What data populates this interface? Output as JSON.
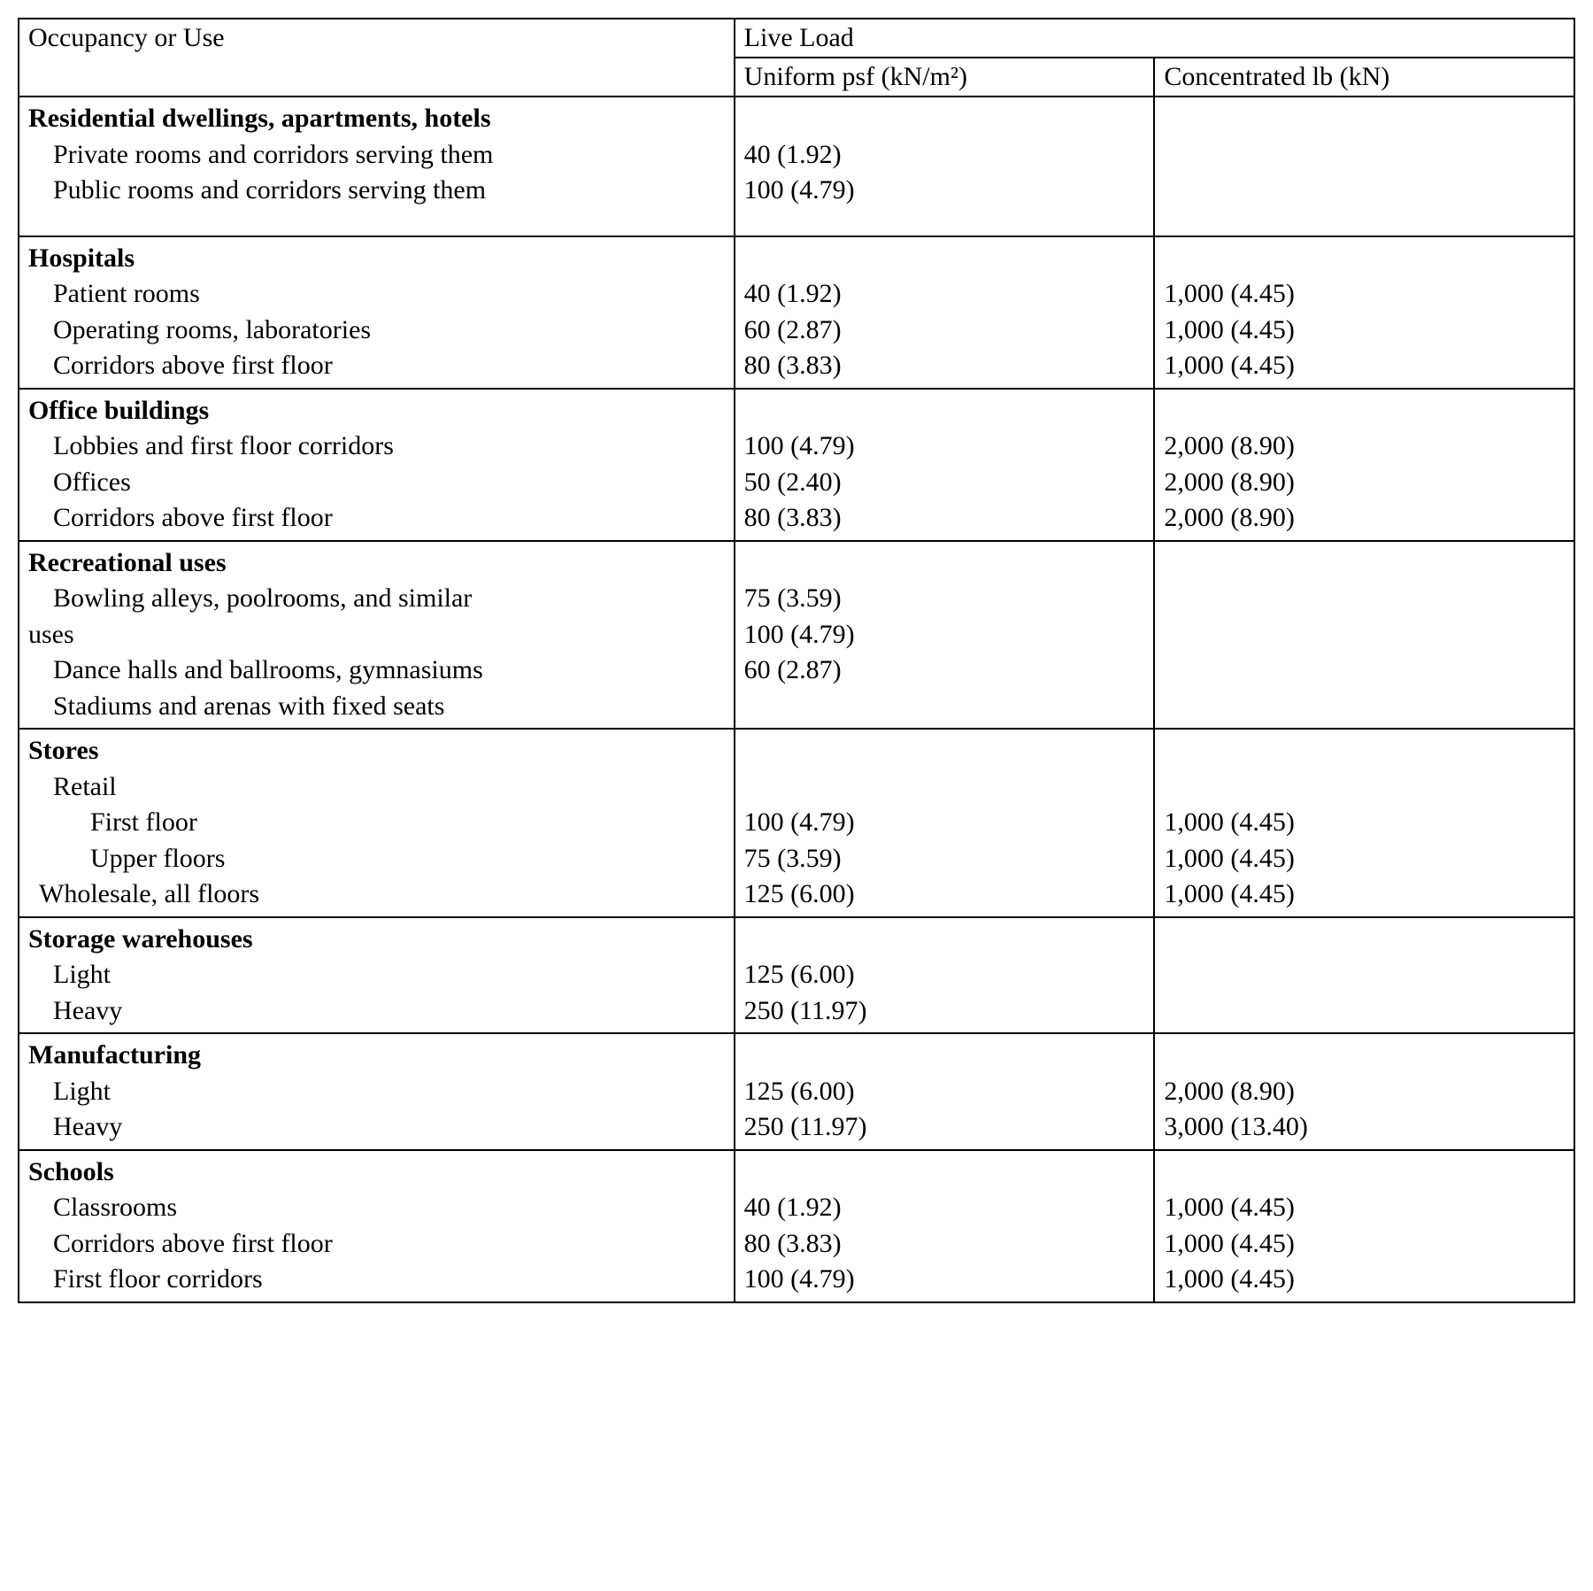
{
  "header": {
    "col1": "Occupancy or Use",
    "col_span": "Live Load",
    "col2": "Uniform psf (kN/m²",
    "col2_suffix": ")",
    "col3": "Concentrated lb (kN)"
  },
  "sections": {
    "residential": {
      "title": "Residential dwellings, apartments, hotels",
      "rows": [
        {
          "label": "Private rooms and corridors serving them",
          "uniform": "40 (1.92)",
          "conc": ""
        },
        {
          "label": "Public rooms and corridors serving them",
          "uniform": "100 (4.79)",
          "conc": ""
        }
      ]
    },
    "hospitals": {
      "title": "Hospitals",
      "rows": [
        {
          "label": "Patient rooms",
          "uniform": "40 (1.92)",
          "conc": "1,000 (4.45)"
        },
        {
          "label": "Operating rooms, laboratories",
          "uniform": "60 (2.87)",
          "conc": "1,000 (4.45)"
        },
        {
          "label": "Corridors above first floor",
          "uniform": "80 (3.83)",
          "conc": "1,000 (4.45)"
        }
      ]
    },
    "office": {
      "title": "Office buildings",
      "rows": [
        {
          "label": "Lobbies and first floor corridors",
          "uniform": "100 (4.79)",
          "conc": "2,000 (8.90)"
        },
        {
          "label": "Offices",
          "uniform": "50 (2.40)",
          "conc": "2,000 (8.90)"
        },
        {
          "label": "Corridors above first floor",
          "uniform": "80 (3.83)",
          "conc": "2,000 (8.90)"
        }
      ]
    },
    "recreational": {
      "title": "Recreational uses",
      "row1_label_a": "Bowling alleys, poolrooms, and similar",
      "row1_label_b": "uses",
      "row2_label": "Dance halls and ballrooms, gymnasiums",
      "row3_label": "Stadiums and arenas with fixed seats",
      "uniforms": [
        "75 (3.59)",
        "100 (4.79)",
        "60 (2.87)"
      ]
    },
    "stores": {
      "title": "Stores",
      "retail_label": "Retail",
      "rows": [
        {
          "label": "First floor",
          "uniform": "100 (4.79)",
          "conc": "1,000 (4.45)"
        },
        {
          "label": "Upper floors",
          "uniform": "75 (3.59)",
          "conc": "1,000 (4.45)"
        }
      ],
      "wholesale": {
        "label": "Wholesale, all floors",
        "uniform": "125 (6.00)",
        "conc": "1,000 (4.45)"
      }
    },
    "storage": {
      "title": "Storage warehouses",
      "rows": [
        {
          "label": "Light",
          "uniform": "125 (6.00)",
          "conc": ""
        },
        {
          "label": "Heavy",
          "uniform": "250 (11.97)",
          "conc": ""
        }
      ]
    },
    "manufacturing": {
      "title": "Manufacturing",
      "rows": [
        {
          "label": "Light",
          "uniform": "125 (6.00)",
          "conc": "2,000 (8.90)"
        },
        {
          "label": "Heavy",
          "uniform": "250 (11.97)",
          "conc": "3,000 (13.40)"
        }
      ]
    },
    "schools": {
      "title": "Schools",
      "rows": [
        {
          "label": "Classrooms",
          "uniform": "40 (1.92)",
          "conc": "1,000 (4.45)"
        },
        {
          "label": "Corridors above first floor",
          "uniform": "80 (3.83)",
          "conc": "1,000 (4.45)"
        },
        {
          "label": "First floor corridors",
          "uniform": "100 (4.79)",
          "conc": "1,000 (4.45)"
        }
      ]
    }
  }
}
